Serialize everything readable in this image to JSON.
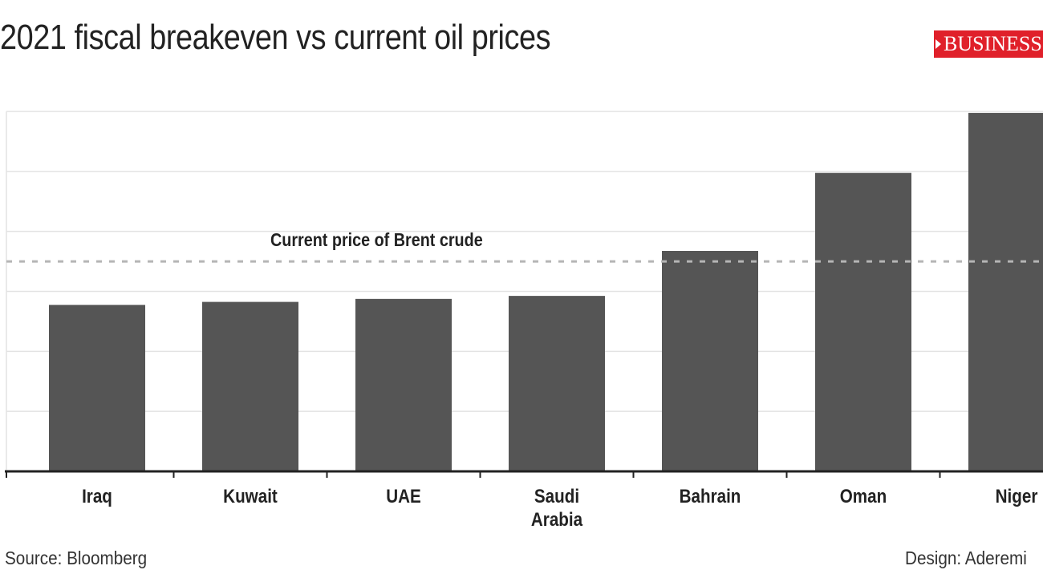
{
  "header": {
    "title": "2021 fiscal breakeven vs current oil prices",
    "logo_text": "BUSINESS"
  },
  "footer": {
    "source": "Source: Bloomberg",
    "design": "Design: Aderemi"
  },
  "colors": {
    "bar": "#555555",
    "grid": "#e3e3e3",
    "axis": "#222222",
    "reference_line": "#b5b5b5",
    "logo_bg": "#e0202a"
  },
  "chart_data": {
    "type": "bar",
    "categories": [
      [
        "Iraq"
      ],
      [
        "Kuwait"
      ],
      [
        "UAE"
      ],
      [
        "Saudi",
        "Arabia"
      ],
      [
        "Bahrain"
      ],
      [
        "Oman"
      ],
      [
        "Niger"
      ]
    ],
    "values": [
      55.5,
      56.5,
      57.5,
      58.5,
      73.5,
      99.5,
      119.5
    ],
    "title": "2021 fiscal breakeven vs current oil prices",
    "xlabel": "",
    "ylabel": "",
    "ylim": [
      0,
      120
    ],
    "grid": true,
    "reference_line": {
      "value": 70,
      "label": "Current price of Brent crude"
    }
  }
}
